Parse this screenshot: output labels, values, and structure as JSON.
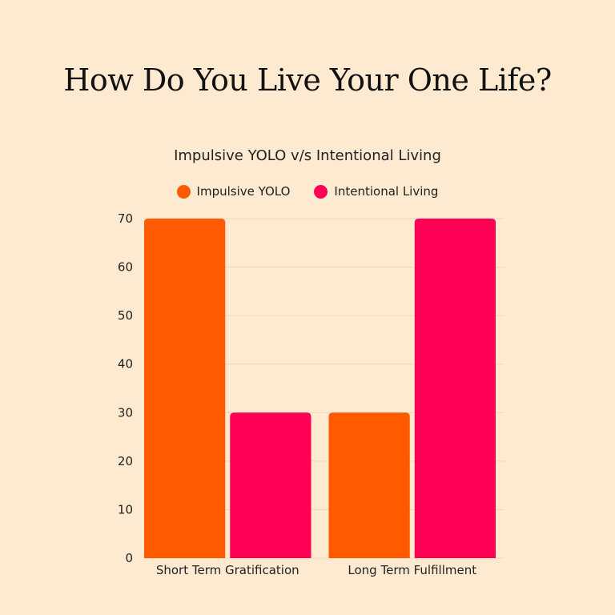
{
  "title": "How Do You Live Your One Life?",
  "chart_data": {
    "type": "bar",
    "title": "Impulsive YOLO v/s Intentional Living",
    "categories": [
      "Short Term Gratification",
      "Long Term Fulfillment"
    ],
    "series": [
      {
        "name": "Impulsive YOLO",
        "values": [
          70,
          30
        ],
        "color": "#ff5a00"
      },
      {
        "name": "Intentional Living",
        "values": [
          30,
          70
        ],
        "color": "#ff0055"
      }
    ],
    "xlabel": "",
    "ylabel": "",
    "ylim": [
      0,
      70
    ],
    "yticks": [
      0,
      10,
      20,
      30,
      40,
      50,
      60,
      70
    ],
    "grid": true,
    "legend": "top-center"
  },
  "colors": {
    "background": "#fdead0",
    "grid": "#ead9bf"
  }
}
